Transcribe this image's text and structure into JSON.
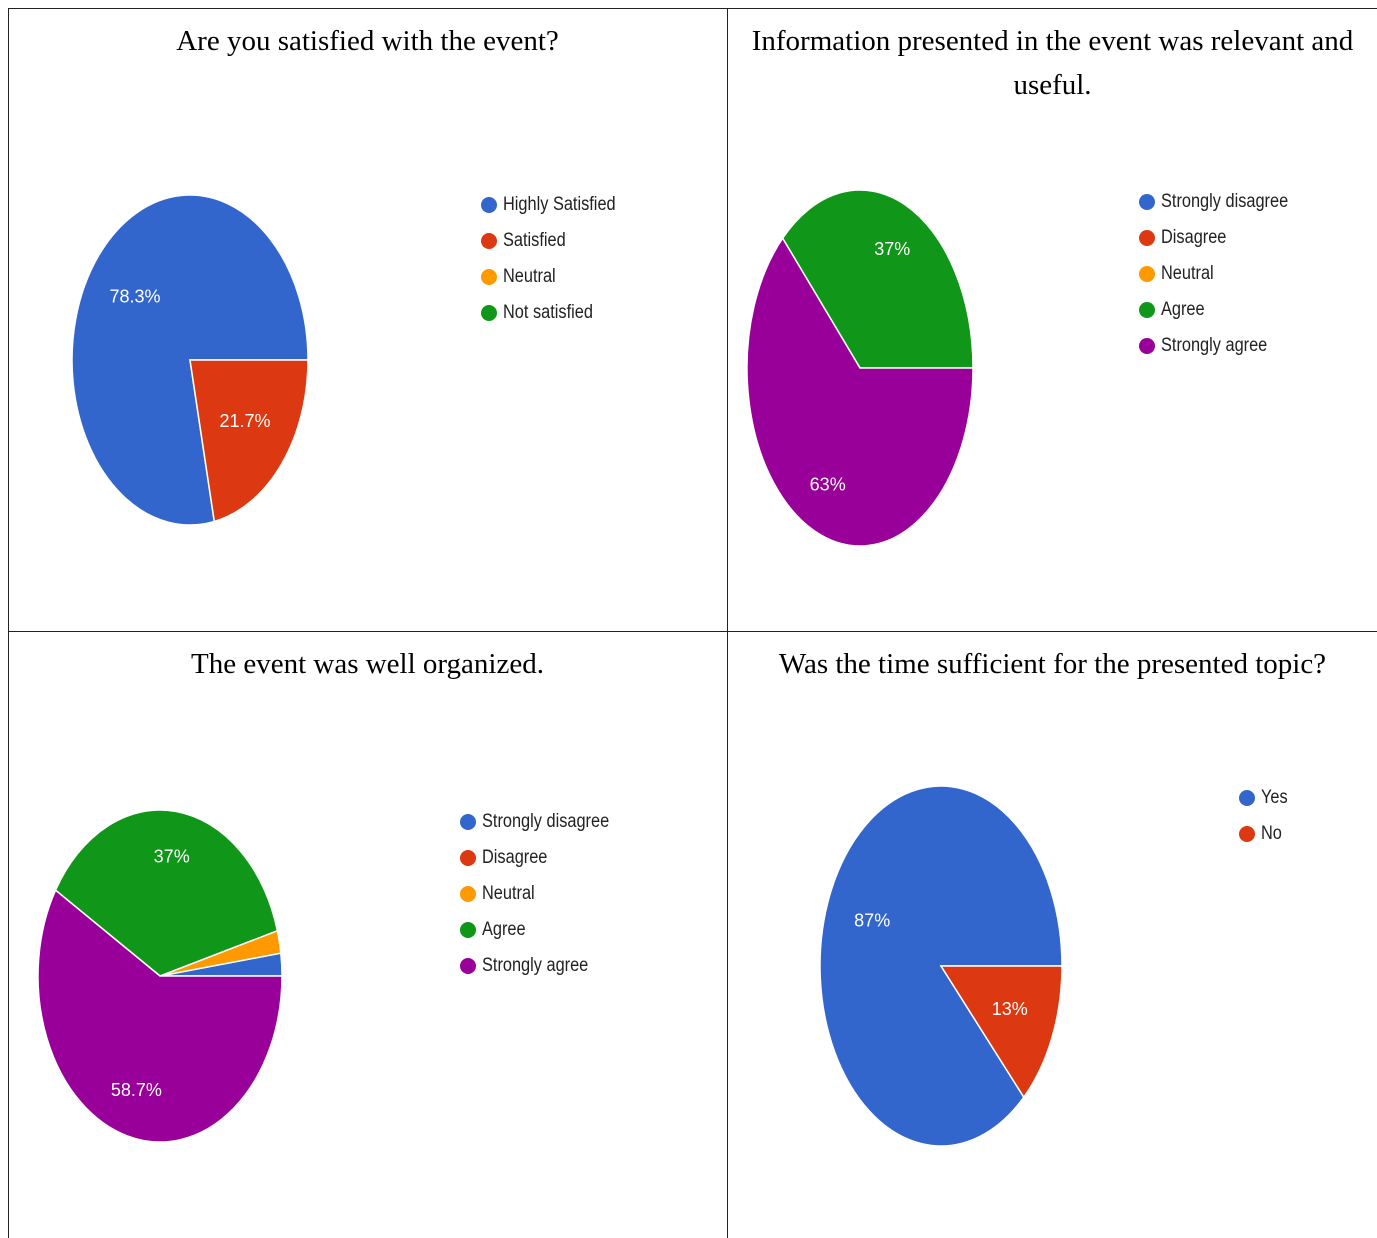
{
  "colors": {
    "blue": "#3366cc",
    "red": "#dc3912",
    "orange": "#ff9900",
    "green": "#109618",
    "purple": "#990099"
  },
  "chart_data": [
    {
      "type": "pie",
      "title": "Are you satisfied with the event?",
      "legend": [
        "Highly Satisfied",
        "Satisfied",
        "Neutral",
        "Not satisfied"
      ],
      "slices": [
        {
          "label": "Highly Satisfied",
          "value": 78.3,
          "display": "78.3%",
          "color": "#3366cc"
        },
        {
          "label": "Satisfied",
          "value": 21.7,
          "display": "21.7%",
          "color": "#dc3912"
        },
        {
          "label": "Neutral",
          "value": 0,
          "display": "",
          "color": "#ff9900"
        },
        {
          "label": "Not satisfied",
          "value": 0,
          "display": "",
          "color": "#109618"
        }
      ]
    },
    {
      "type": "pie",
      "title": "Information presented in the event was relevant and useful.",
      "legend": [
        "Strongly disagree",
        "Disagree",
        "Neutral",
        "Agree",
        "Strongly agree"
      ],
      "slices": [
        {
          "label": "Strongly disagree",
          "value": 0,
          "display": "",
          "color": "#3366cc"
        },
        {
          "label": "Disagree",
          "value": 0,
          "display": "",
          "color": "#dc3912"
        },
        {
          "label": "Neutral",
          "value": 0,
          "display": "",
          "color": "#ff9900"
        },
        {
          "label": "Agree",
          "value": 37,
          "display": "37%",
          "color": "#109618"
        },
        {
          "label": "Strongly agree",
          "value": 63,
          "display": "63%",
          "color": "#990099"
        }
      ]
    },
    {
      "type": "pie",
      "title": "The event was well organized.",
      "legend": [
        "Strongly disagree",
        "Disagree",
        "Neutral",
        "Agree",
        "Strongly agree"
      ],
      "slices": [
        {
          "label": "Strongly disagree",
          "value": 2.2,
          "display": "",
          "color": "#3366cc"
        },
        {
          "label": "Disagree",
          "value": 0,
          "display": "",
          "color": "#dc3912"
        },
        {
          "label": "Neutral",
          "value": 2.2,
          "display": "",
          "color": "#ff9900"
        },
        {
          "label": "Agree",
          "value": 37,
          "display": "37%",
          "color": "#109618"
        },
        {
          "label": "Strongly agree",
          "value": 58.7,
          "display": "58.7%",
          "color": "#990099"
        }
      ]
    },
    {
      "type": "pie",
      "title": "Was the time sufficient for the presented topic?",
      "legend": [
        "Yes",
        "No"
      ],
      "slices": [
        {
          "label": "Yes",
          "value": 87,
          "display": "87%",
          "color": "#3366cc"
        },
        {
          "label": "No",
          "value": 13,
          "display": "13%",
          "color": "#dc3912"
        }
      ]
    }
  ]
}
